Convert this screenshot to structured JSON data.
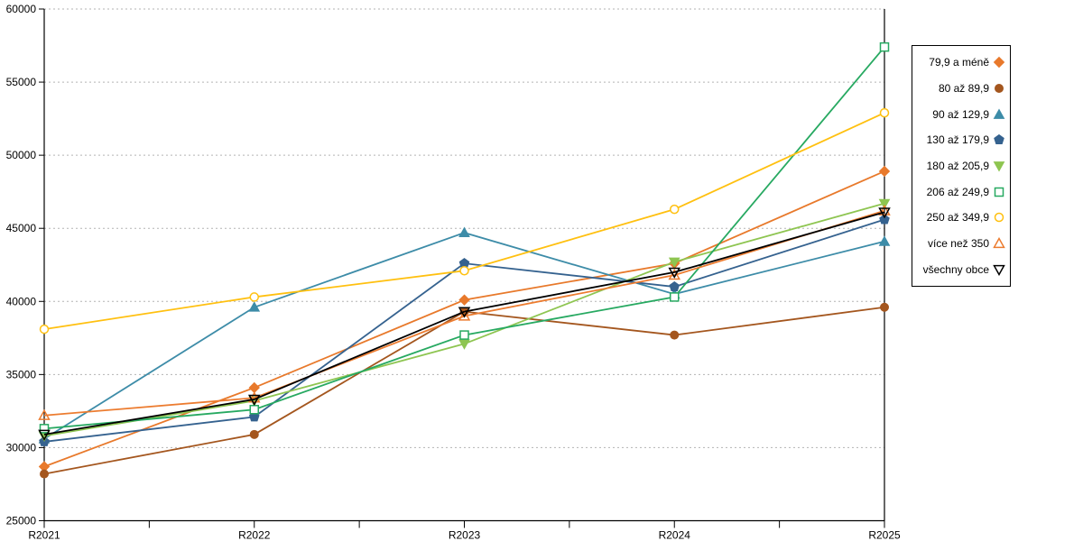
{
  "chart_data": {
    "type": "line",
    "categories": [
      "R2021",
      "R2022",
      "R2023",
      "R2024",
      "R2025"
    ],
    "series": [
      {
        "name": "79,9 a méně",
        "color": "#E8792B",
        "marker": "diamond",
        "fill": "solid",
        "values": [
          28700,
          34100,
          40100,
          42600,
          48900
        ]
      },
      {
        "name": "80 až 89,9",
        "color": "#A4561E",
        "marker": "circle",
        "fill": "solid",
        "values": [
          28200,
          30900,
          39300,
          37700,
          39600
        ]
      },
      {
        "name": "90 až 129,9",
        "color": "#3D8CA8",
        "marker": "triangle-up",
        "fill": "solid",
        "values": [
          30600,
          39600,
          44700,
          40500,
          44100
        ]
      },
      {
        "name": "130 až 179,9",
        "color": "#35628F",
        "marker": "pentagon",
        "fill": "solid",
        "values": [
          30400,
          32100,
          42600,
          41000,
          45600
        ]
      },
      {
        "name": "180 až 205,9",
        "color": "#8EC551",
        "marker": "triangle-down",
        "fill": "solid",
        "values": [
          30800,
          33200,
          37100,
          42700,
          46700
        ]
      },
      {
        "name": "206 až 249,9",
        "color": "#27A961",
        "marker": "square",
        "fill": "hollow",
        "values": [
          31300,
          32600,
          37700,
          40300,
          57400
        ]
      },
      {
        "name": "250 až 349,9",
        "color": "#FFC010",
        "marker": "circle",
        "fill": "hollow",
        "values": [
          38100,
          40300,
          42100,
          46300,
          52900
        ]
      },
      {
        "name": "více než 350",
        "color": "#EC7C30",
        "marker": "triangle-up",
        "fill": "hollow",
        "values": [
          32200,
          33400,
          39000,
          41800,
          46200
        ]
      },
      {
        "name": "všechny obce",
        "color": "#000000",
        "marker": "triangle-down",
        "fill": "hollow",
        "values": [
          30900,
          33300,
          39300,
          42000,
          46100
        ]
      }
    ],
    "ylim": [
      25000,
      60000
    ],
    "ytick_step": 5000,
    "y_tick_labels": [
      "25000",
      "30000",
      "35000",
      "40000",
      "45000",
      "50000",
      "55000",
      "60000"
    ],
    "grid": "horizontal dashed",
    "legend_position": "right",
    "title": "",
    "xlabel": "",
    "ylabel": ""
  }
}
